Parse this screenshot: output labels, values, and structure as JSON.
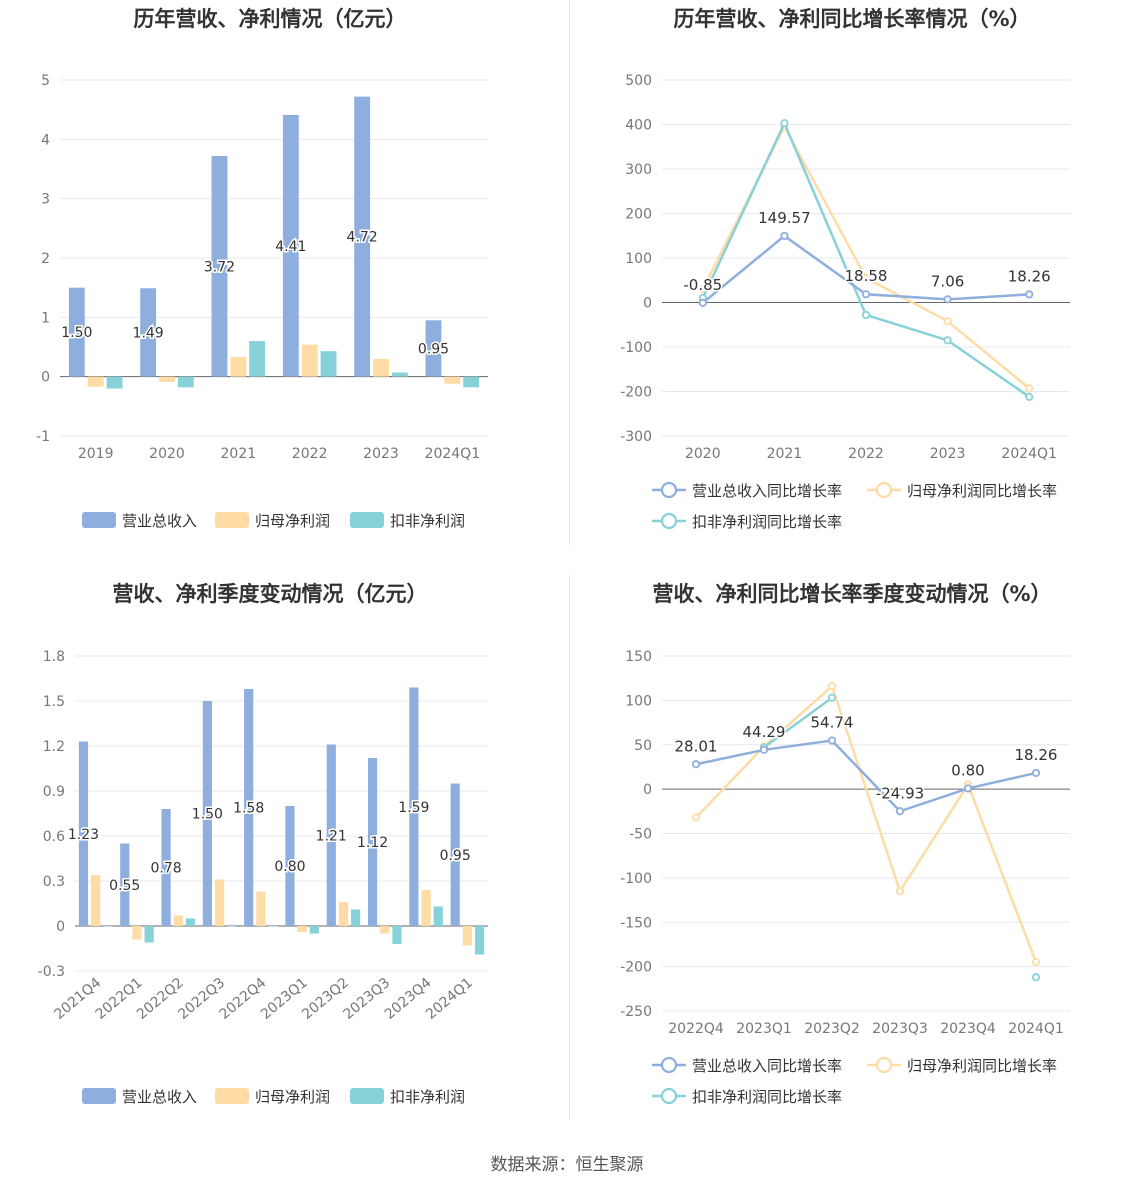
{
  "source": "数据来源：恒生聚源",
  "colors": {
    "revenue": "#8eaedd",
    "net_profit": "#ffdba6",
    "deducted_profit": "#86d2d8",
    "grid": "#e6e8ef",
    "axis_text": "#777777",
    "title": "#333333",
    "label": "#333333"
  },
  "chart_data": [
    {
      "id": "annual_amount",
      "type": "bar",
      "title": "历年营收、净利情况（亿元）",
      "categories": [
        "2019",
        "2020",
        "2021",
        "2022",
        "2023",
        "2024Q1"
      ],
      "ylim": [
        -1,
        5
      ],
      "yticks": [
        -1,
        0,
        1,
        2,
        3,
        4,
        5
      ],
      "legend": "bottom",
      "grid": true,
      "series": [
        {
          "name": "营业总收入",
          "values": [
            1.5,
            1.49,
            3.72,
            4.41,
            4.72,
            0.95
          ],
          "labels": [
            "1.50",
            "1.49",
            "3.72",
            "4.41",
            "4.72",
            "0.95"
          ]
        },
        {
          "name": "归母净利润",
          "values": [
            -0.17,
            -0.09,
            0.33,
            0.54,
            0.3,
            -0.12
          ]
        },
        {
          "name": "扣非净利润",
          "values": [
            -0.2,
            -0.18,
            0.6,
            0.43,
            0.07,
            -0.18
          ]
        }
      ]
    },
    {
      "id": "annual_growth",
      "type": "line",
      "title": "历年营收、净利同比增长率情况（%）",
      "categories": [
        "2020",
        "2021",
        "2022",
        "2023",
        "2024Q1"
      ],
      "ylim": [
        -300,
        500
      ],
      "yticks": [
        -300,
        -200,
        -100,
        0,
        100,
        200,
        300,
        400,
        500
      ],
      "legend": "bottom",
      "grid": true,
      "series": [
        {
          "name": "营业总收入同比增长率",
          "values": [
            -0.85,
            149.57,
            18.58,
            7.06,
            18.26
          ],
          "labels": [
            "-0.85",
            "149.57",
            "18.58",
            "7.06",
            "18.26"
          ]
        },
        {
          "name": "归母净利润同比增长率",
          "values": [
            30,
            395,
            55,
            -42,
            -193
          ]
        },
        {
          "name": "扣非净利润同比增长率",
          "values": [
            10,
            403,
            -28,
            -85,
            -212
          ]
        }
      ]
    },
    {
      "id": "quarterly_amount",
      "type": "bar",
      "title": "营收、净利季度变动情况（亿元）",
      "categories": [
        "2021Q4",
        "2022Q1",
        "2022Q2",
        "2022Q3",
        "2022Q4",
        "2023Q1",
        "2023Q2",
        "2023Q3",
        "2023Q4",
        "2024Q1"
      ],
      "ylim": [
        -0.3,
        1.8
      ],
      "yticks": [
        -0.3,
        0,
        0.3,
        0.6,
        0.9,
        1.2,
        1.5,
        1.8
      ],
      "legend": "bottom",
      "grid": true,
      "series": [
        {
          "name": "营业总收入",
          "values": [
            1.23,
            0.55,
            0.78,
            1.5,
            1.58,
            0.8,
            1.21,
            1.12,
            1.59,
            0.95
          ],
          "labels": [
            "1.23",
            "0.55",
            "0.78",
            "1.50",
            "1.58",
            "0.80",
            "1.21",
            "1.12",
            "1.59",
            "0.95"
          ]
        },
        {
          "name": "归母净利润",
          "values": [
            0.34,
            -0.09,
            0.07,
            0.31,
            0.23,
            -0.04,
            0.16,
            -0.05,
            0.24,
            -0.13
          ]
        },
        {
          "name": "扣非净利润",
          "values": [
            0,
            -0.11,
            0.05,
            0,
            0,
            -0.05,
            0.11,
            -0.12,
            0.13,
            -0.19
          ]
        }
      ]
    },
    {
      "id": "quarterly_growth",
      "type": "line",
      "title": "营收、净利同比增长率季度变动情况（%）",
      "categories": [
        "2022Q4",
        "2023Q1",
        "2023Q2",
        "2023Q3",
        "2023Q4",
        "2024Q1"
      ],
      "ylim": [
        -250,
        150
      ],
      "yticks": [
        -250,
        -200,
        -150,
        -100,
        -50,
        0,
        50,
        100,
        150
      ],
      "legend": "bottom",
      "grid": true,
      "series": [
        {
          "name": "营业总收入同比增长率",
          "values": [
            28.01,
            44.29,
            54.74,
            -24.93,
            0.8,
            18.26
          ],
          "labels": [
            "28.01",
            "44.29",
            "54.74",
            "-24.93",
            "0.80",
            "18.26"
          ]
        },
        {
          "name": "归母净利润同比增长率",
          "values": [
            -32,
            48,
            116,
            -115,
            5,
            -195
          ]
        },
        {
          "name": "扣非净利润同比增长率",
          "values": [
            null,
            47,
            103,
            null,
            null,
            -212
          ]
        }
      ]
    }
  ]
}
